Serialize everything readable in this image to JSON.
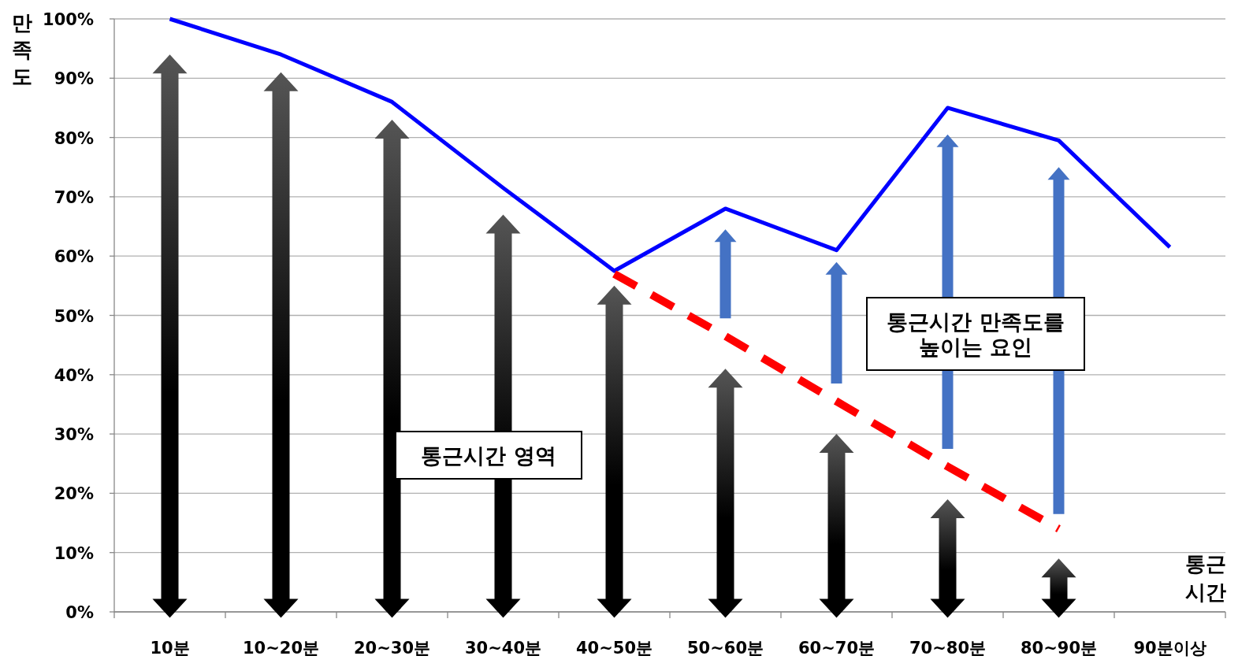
{
  "chart_data": {
    "type": "line",
    "ylabel": "만족도",
    "xlabel": "통근시간",
    "categories": [
      "10분",
      "10~20분",
      "20~30분",
      "30~40분",
      "40~50분",
      "50~60분",
      "60~70분",
      "70~80분",
      "80~90분",
      "90분이상"
    ],
    "series": [
      {
        "color": "#0000ff",
        "values": [
          100,
          94,
          86,
          71.5,
          57.5,
          68,
          61,
          85,
          79.5,
          61.5
        ]
      },
      {
        "color": "#ff0000",
        "line_style": "dashed",
        "values": [
          null,
          null,
          null,
          null,
          57,
          46.5,
          35.5,
          24.5,
          14,
          null
        ]
      }
    ],
    "ylim": [
      0,
      100
    ],
    "yticks": [
      {
        "value": 0,
        "label": "0%"
      },
      {
        "value": 10,
        "label": "10%"
      },
      {
        "value": 20,
        "label": "20%"
      },
      {
        "value": 30,
        "label": "30%"
      },
      {
        "value": 40,
        "label": "40%"
      },
      {
        "value": 50,
        "label": "50%"
      },
      {
        "value": 60,
        "label": "60%"
      },
      {
        "value": 70,
        "label": "70%"
      },
      {
        "value": 80,
        "label": "80%"
      },
      {
        "value": 90,
        "label": "90%"
      },
      {
        "value": 100,
        "label": "100%"
      }
    ],
    "grid": "y",
    "marker": "none",
    "line_style": "solid",
    "annotations": [
      "통근시간 영역",
      "통근시간 만족도를 높이는 요인"
    ]
  }
}
